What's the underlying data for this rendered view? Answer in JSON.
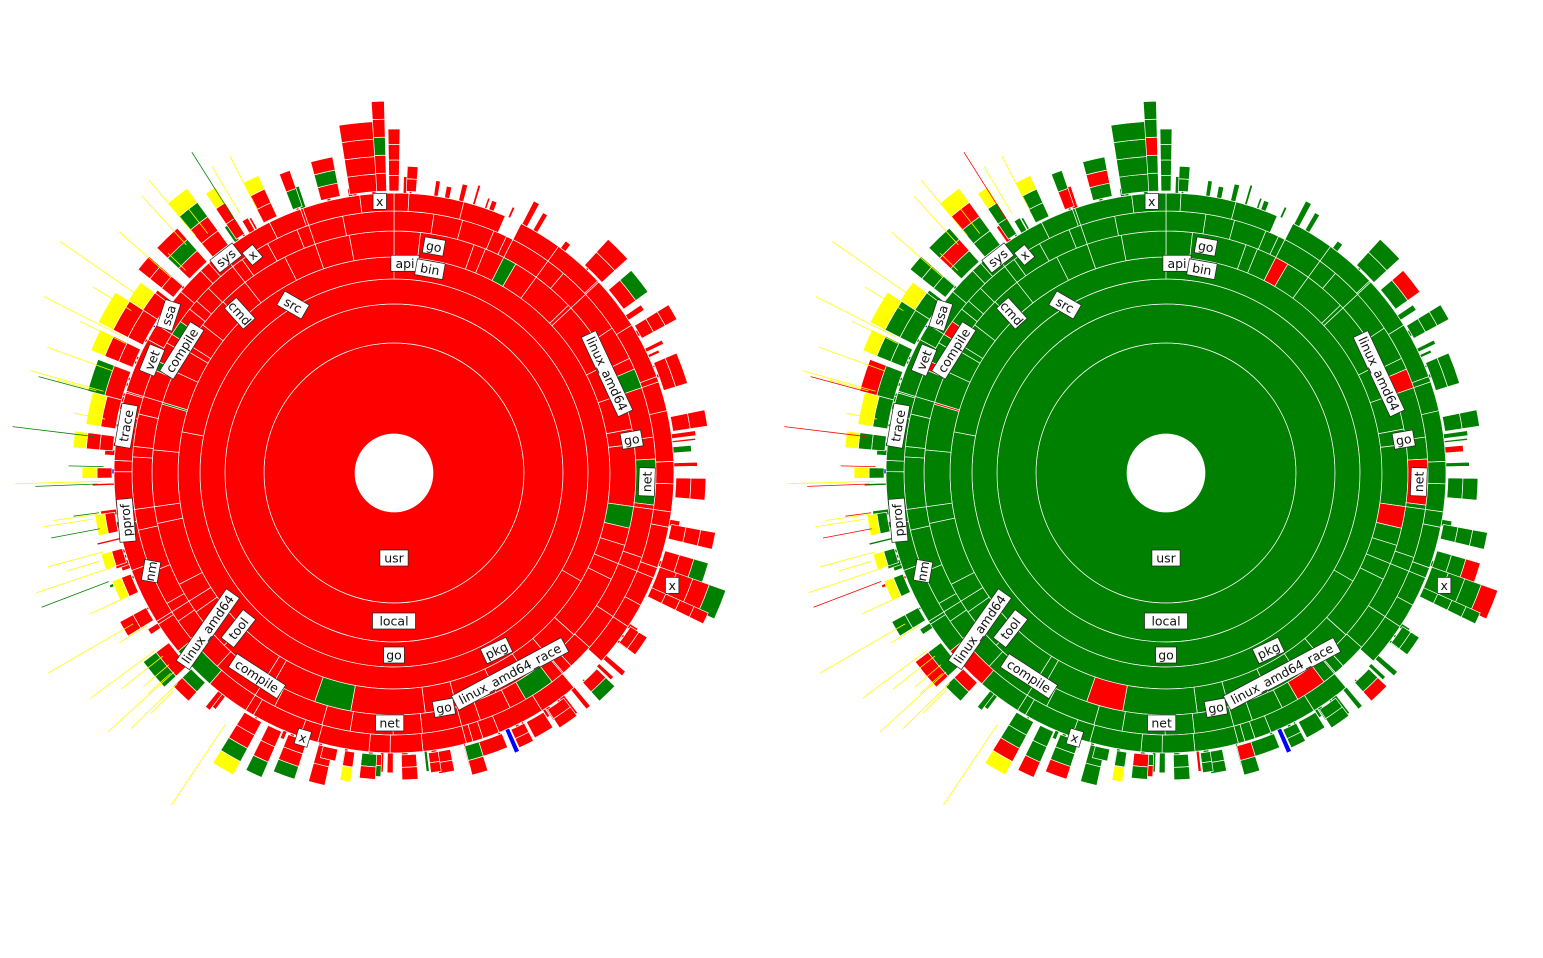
{
  "colors": {
    "red": "#ff0000",
    "green": "#008000",
    "yellow": "#ffff00",
    "blue": "#0000ff",
    "separator": "#ffffff",
    "background": "#ffffff"
  },
  "panels": [
    {
      "id": "left",
      "base_color": "#ff0000",
      "accent_color": "#008000",
      "labels": [
        "usr",
        "local",
        "go",
        "pkg",
        "linux_amd64_race",
        "go",
        "net",
        "x",
        "compile",
        "tool",
        "linux_amd64",
        "nm",
        "pprof",
        "trace",
        "vet",
        "compile",
        "ssa",
        "cmd",
        "src",
        "sys",
        "x",
        "api",
        "bin",
        "go",
        "linux_amd64",
        "go",
        "net",
        "x",
        "x"
      ]
    },
    {
      "id": "right",
      "base_color": "#008000",
      "accent_color": "#ff0000",
      "labels": [
        "usr",
        "local",
        "go",
        "pkg",
        "linux_amd64_race",
        "go",
        "net",
        "x",
        "compile",
        "tool",
        "linux_amd64",
        "nm",
        "pprof",
        "trace",
        "vet",
        "compile",
        "ssa",
        "cmd",
        "src",
        "sys",
        "x",
        "api",
        "bin",
        "go",
        "linux_amd64",
        "go",
        "net",
        "x",
        "x"
      ]
    }
  ]
}
